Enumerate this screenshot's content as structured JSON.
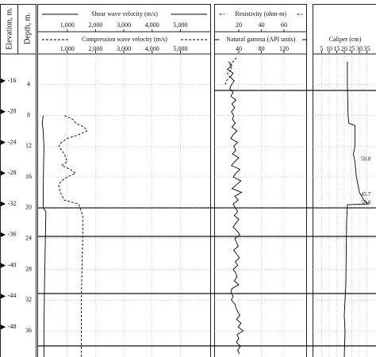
{
  "depth_axis": {
    "label": "Depth, m.",
    "ylim": [
      0,
      39.4
    ],
    "yticks": [
      4,
      8,
      12,
      16,
      20,
      24,
      28,
      32,
      36
    ]
  },
  "elevation_axis": {
    "label": "Elevation, m.",
    "ylim": [
      -12.5,
      -51.9
    ],
    "yticks": [
      -16,
      -20,
      -24,
      -28,
      -32,
      -36,
      -40,
      -44,
      -48
    ]
  },
  "chart_data": [
    {
      "type": "line",
      "grid": true,
      "xlim": [
        0,
        6050
      ],
      "xticks": [
        {
          "value": 1000,
          "label": "1,000"
        },
        {
          "value": 2000,
          "label": "2,000"
        },
        {
          "value": 3000,
          "label": "3,000"
        },
        {
          "value": 4000,
          "label": "4,000"
        },
        {
          "value": 5000,
          "label": "5,000"
        }
      ],
      "x2lim": [
        0,
        6050
      ],
      "x2ticks": [
        {
          "value": 1000,
          "label": "1,000"
        },
        {
          "value": 2000,
          "label": "2,000"
        },
        {
          "value": 3000,
          "label": "3,000"
        },
        {
          "value": 4000,
          "label": "4,000"
        },
        {
          "value": 5000,
          "label": "5,000"
        }
      ],
      "series": [
        {
          "name": "Shear wave velocity (m/s)",
          "axis": "x2",
          "color": "#000000",
          "dash": "solid",
          "depth": [
            8,
            9,
            10,
            12,
            16,
            20,
            20.5,
            24,
            30,
            36,
            39.4
          ],
          "values": [
            150,
            120,
            150,
            180,
            160,
            150,
            250,
            230,
            200,
            180,
            180
          ]
        },
        {
          "name": "Compression wave velocity (m/s)",
          "color": "#000000",
          "dash": "dashed",
          "depth": [
            8,
            8.5,
            9,
            9.5,
            10,
            10.5,
            11,
            11.5,
            12,
            13,
            14,
            14.5,
            15,
            15.5,
            16,
            16.5,
            17,
            18,
            19,
            19.5,
            20,
            20.5,
            21,
            24,
            28,
            32,
            36,
            39.4
          ],
          "values": [
            900,
            1200,
            1300,
            1600,
            1700,
            1400,
            1000,
            800,
            700,
            900,
            1000,
            800,
            1100,
            1300,
            1000,
            800,
            700,
            750,
            900,
            1400,
            1450,
            1500,
            1550,
            1550,
            1520,
            1500,
            1500,
            1500
          ]
        }
      ]
    },
    {
      "type": "line",
      "grid": true,
      "xlim": [
        0,
        158
      ],
      "xticks": [
        40,
        80,
        120
      ],
      "x2lim": [
        0,
        79
      ],
      "x2ticks": [
        20,
        40,
        60
      ],
      "series": [
        {
          "name": "Resistivity (ohm-m)",
          "axis": "x2",
          "color": "#000000",
          "dash": "dashed",
          "depth": [
            0.5,
            1,
            1.5,
            2,
            2.5,
            3,
            3.5,
            4
          ],
          "values": [
            18,
            15,
            12,
            14,
            10,
            12,
            9,
            8
          ]
        },
        {
          "name": "Natural gamma (API units)",
          "color": "#000000",
          "dash": "solid",
          "depth": [
            1,
            1.5,
            2,
            2.5,
            3,
            3.5,
            4,
            4.5,
            5,
            5.5,
            6,
            6.5,
            7,
            7.5,
            8,
            8.5,
            9,
            9.5,
            10,
            10.5,
            11,
            11.5,
            12,
            12.5,
            13,
            13.5,
            14,
            14.5,
            15,
            15.5,
            16,
            16.5,
            17,
            17.5,
            18,
            18.5,
            19,
            19.5,
            20,
            20.5,
            21,
            21.5,
            22,
            22.5,
            23,
            23.5,
            24,
            24.5,
            25,
            25.5,
            26,
            26.5,
            27,
            27.5,
            28,
            28.5,
            29,
            29.5,
            30,
            30.5,
            31,
            31.5,
            32,
            32.5,
            33,
            33.5,
            34,
            34.5,
            35,
            35.5,
            36,
            36.5,
            37,
            37.5,
            38,
            38.5,
            39
          ],
          "values": [
            22,
            28,
            20,
            30,
            25,
            32,
            27,
            24,
            30,
            26,
            35,
            28,
            33,
            27,
            31,
            29,
            34,
            28,
            37,
            30,
            26,
            38,
            31,
            35,
            29,
            40,
            33,
            27,
            42,
            35,
            30,
            44,
            36,
            28,
            45,
            33,
            39,
            30,
            34,
            38,
            32,
            40,
            35,
            30,
            37,
            42,
            33,
            36,
            39,
            31,
            36,
            41,
            34,
            38,
            30,
            35,
            37,
            32,
            40,
            28,
            26,
            30,
            27,
            33,
            35,
            38,
            42,
            36,
            44,
            39,
            48,
            37,
            40,
            36,
            43,
            38,
            41
          ]
        }
      ]
    },
    {
      "type": "line",
      "grid": true,
      "xlim": [
        0,
        41
      ],
      "xticks": [
        5,
        10,
        15,
        20,
        25,
        30,
        35
      ],
      "series": [
        {
          "name": "Caliper (cm)",
          "color": "#000000",
          "dash": "solid",
          "depth": [
            1,
            4,
            8,
            9,
            9.3,
            12,
            13,
            14,
            16,
            18,
            19,
            19.5,
            19.6,
            22,
            30,
            34,
            36,
            39.4
          ],
          "values": [
            22,
            22,
            22.5,
            23,
            27,
            27,
            26,
            27,
            28,
            30,
            33,
            36,
            22,
            21.5,
            21,
            20,
            20.5,
            20
          ]
        }
      ],
      "annotations": [
        {
          "text": "50.8",
          "depth": 13.7
        },
        {
          "text": "45.7",
          "depth": 18.3
        },
        {
          "text": "50.8",
          "depth": 19.4
        }
      ]
    }
  ]
}
